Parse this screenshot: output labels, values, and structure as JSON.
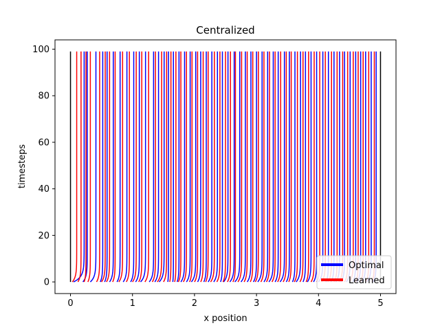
{
  "chart_data": {
    "type": "line",
    "title": "Centralized",
    "xlabel": "x position",
    "ylabel": "timesteps",
    "xlim": [
      -0.25,
      5.25
    ],
    "ylim": [
      -5,
      104
    ],
    "xticks": [
      0,
      1,
      2,
      3,
      4,
      5
    ],
    "yticks": [
      0,
      20,
      40,
      60,
      80,
      100
    ],
    "grid": false,
    "legend_position": "lower-right",
    "colors": {
      "optimal": "#0000ff",
      "learned": "#ff0000",
      "boundary": "#000000"
    },
    "boundaries": [
      0,
      5
    ],
    "t_max": 99,
    "series": [
      {
        "name": "Optimal",
        "final_x": [
          0.22,
          0.27,
          0.41,
          0.52,
          0.59,
          0.69,
          0.8,
          0.91,
          1.02,
          1.11,
          1.21,
          1.34,
          1.42,
          1.51,
          1.58,
          1.66,
          1.75,
          1.84,
          1.93,
          2.02,
          2.1,
          2.19,
          2.28,
          2.37,
          2.45,
          2.54,
          2.64,
          2.73,
          2.82,
          2.91,
          3.0,
          3.09,
          3.18,
          3.27,
          3.35,
          3.45,
          3.53,
          3.62,
          3.71,
          3.79,
          3.88,
          3.97,
          4.07,
          4.16,
          4.25,
          4.34,
          4.42,
          4.51,
          4.6,
          4.68,
          4.76,
          4.85,
          4.93
        ],
        "start_x": [
          0.05,
          0.2,
          0.32,
          0.48,
          0.55,
          0.63,
          0.75,
          0.85,
          0.97,
          1.05,
          1.13,
          1.27,
          1.36,
          1.43,
          1.57,
          1.65,
          1.72,
          1.78,
          1.87,
          1.95,
          2.05,
          2.15,
          2.22,
          2.31,
          2.42,
          2.47,
          2.57,
          2.65,
          2.75,
          2.85,
          2.95,
          3.02,
          3.12,
          3.2,
          3.3,
          3.38,
          3.48,
          3.58,
          3.64,
          3.75,
          3.82,
          3.92,
          4.0,
          4.12,
          4.2,
          4.28,
          4.36,
          4.45,
          4.55,
          4.62,
          4.7,
          4.78,
          4.88
        ]
      },
      {
        "name": "Learned",
        "final_x": [
          0.1,
          0.17,
          0.25,
          0.32,
          0.47,
          0.56,
          0.63,
          0.72,
          0.84,
          0.95,
          1.06,
          1.15,
          1.26,
          1.37,
          1.47,
          1.55,
          1.62,
          1.7,
          1.78,
          1.87,
          1.96,
          2.05,
          2.14,
          2.22,
          2.32,
          2.41,
          2.5,
          2.58,
          2.66,
          2.76,
          2.85,
          2.94,
          3.03,
          3.12,
          3.21,
          3.3,
          3.39,
          3.48,
          3.56,
          3.66,
          3.75,
          3.84,
          3.93,
          4.02,
          4.11,
          4.21,
          4.3,
          4.39,
          4.47,
          4.56,
          4.64,
          4.72,
          4.81,
          4.9
        ],
        "start_x": [
          0.03,
          0.12,
          0.22,
          0.28,
          0.42,
          0.5,
          0.58,
          0.68,
          0.78,
          0.9,
          1.0,
          1.1,
          1.2,
          1.32,
          1.4,
          1.5,
          1.6,
          1.68,
          1.74,
          1.82,
          1.92,
          2.0,
          2.1,
          2.18,
          2.26,
          2.36,
          2.46,
          2.53,
          2.62,
          2.7,
          2.8,
          2.9,
          2.98,
          3.07,
          3.16,
          3.25,
          3.34,
          3.43,
          3.52,
          3.61,
          3.7,
          3.8,
          3.88,
          3.97,
          4.05,
          4.15,
          4.25,
          4.33,
          4.42,
          4.5,
          4.6,
          4.68,
          4.76,
          4.86
        ]
      }
    ]
  }
}
